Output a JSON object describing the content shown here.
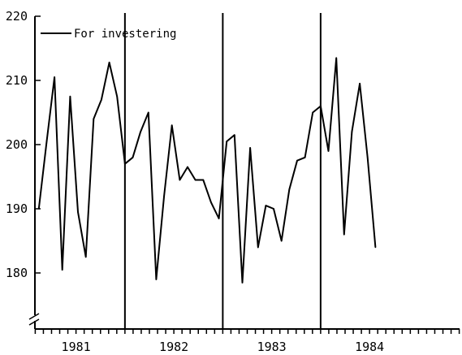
{
  "chart_data": {
    "type": "line",
    "title": "",
    "xlabel": "",
    "ylabel": "",
    "ylim": [
      170,
      220
    ],
    "yticks": [
      180,
      190,
      200,
      210,
      220
    ],
    "y_axis_break": true,
    "xlim": [
      1980.58,
      1984.92
    ],
    "year_labels": [
      {
        "label": "1981",
        "x": 1981.0
      },
      {
        "label": "1982",
        "x": 1982.0
      },
      {
        "label": "1983",
        "x": 1983.0
      },
      {
        "label": "1984",
        "x": 1984.0
      }
    ],
    "year_dividers": [
      1981.5,
      1982.5,
      1983.5
    ],
    "grid": false,
    "legend": {
      "position": "top-left"
    },
    "series": [
      {
        "name": "For investering",
        "color": "#000000",
        "points": [
          [
            1980.62,
            190.0
          ],
          [
            1980.7,
            200.5
          ],
          [
            1980.78,
            210.5
          ],
          [
            1980.86,
            180.5
          ],
          [
            1980.94,
            207.5
          ],
          [
            1981.02,
            189.5
          ],
          [
            1981.1,
            182.5
          ],
          [
            1981.18,
            204.0
          ],
          [
            1981.26,
            207.0
          ],
          [
            1981.34,
            212.8
          ],
          [
            1981.42,
            207.5
          ],
          [
            1981.5,
            197.0
          ],
          [
            1981.58,
            198.0
          ],
          [
            1981.66,
            202.0
          ],
          [
            1981.74,
            205.0
          ],
          [
            1981.82,
            179.0
          ],
          [
            1981.9,
            192.0
          ],
          [
            1981.98,
            203.0
          ],
          [
            1982.06,
            194.5
          ],
          [
            1982.14,
            196.5
          ],
          [
            1982.22,
            194.5
          ],
          [
            1982.3,
            194.5
          ],
          [
            1982.38,
            191.0
          ],
          [
            1982.46,
            188.5
          ],
          [
            1982.54,
            200.5
          ],
          [
            1982.62,
            201.5
          ],
          [
            1982.7,
            178.5
          ],
          [
            1982.78,
            199.5
          ],
          [
            1982.86,
            184.0
          ],
          [
            1982.94,
            190.5
          ],
          [
            1983.02,
            190.0
          ],
          [
            1983.1,
            185.0
          ],
          [
            1983.18,
            193.0
          ],
          [
            1983.26,
            197.5
          ],
          [
            1983.34,
            198.0
          ],
          [
            1983.42,
            205.0
          ],
          [
            1983.5,
            206.0
          ],
          [
            1983.58,
            199.0
          ],
          [
            1983.66,
            213.5
          ],
          [
            1983.74,
            186.0
          ],
          [
            1983.82,
            202.0
          ],
          [
            1983.9,
            209.5
          ],
          [
            1983.98,
            198.0
          ],
          [
            1984.06,
            184.0
          ]
        ]
      }
    ]
  }
}
